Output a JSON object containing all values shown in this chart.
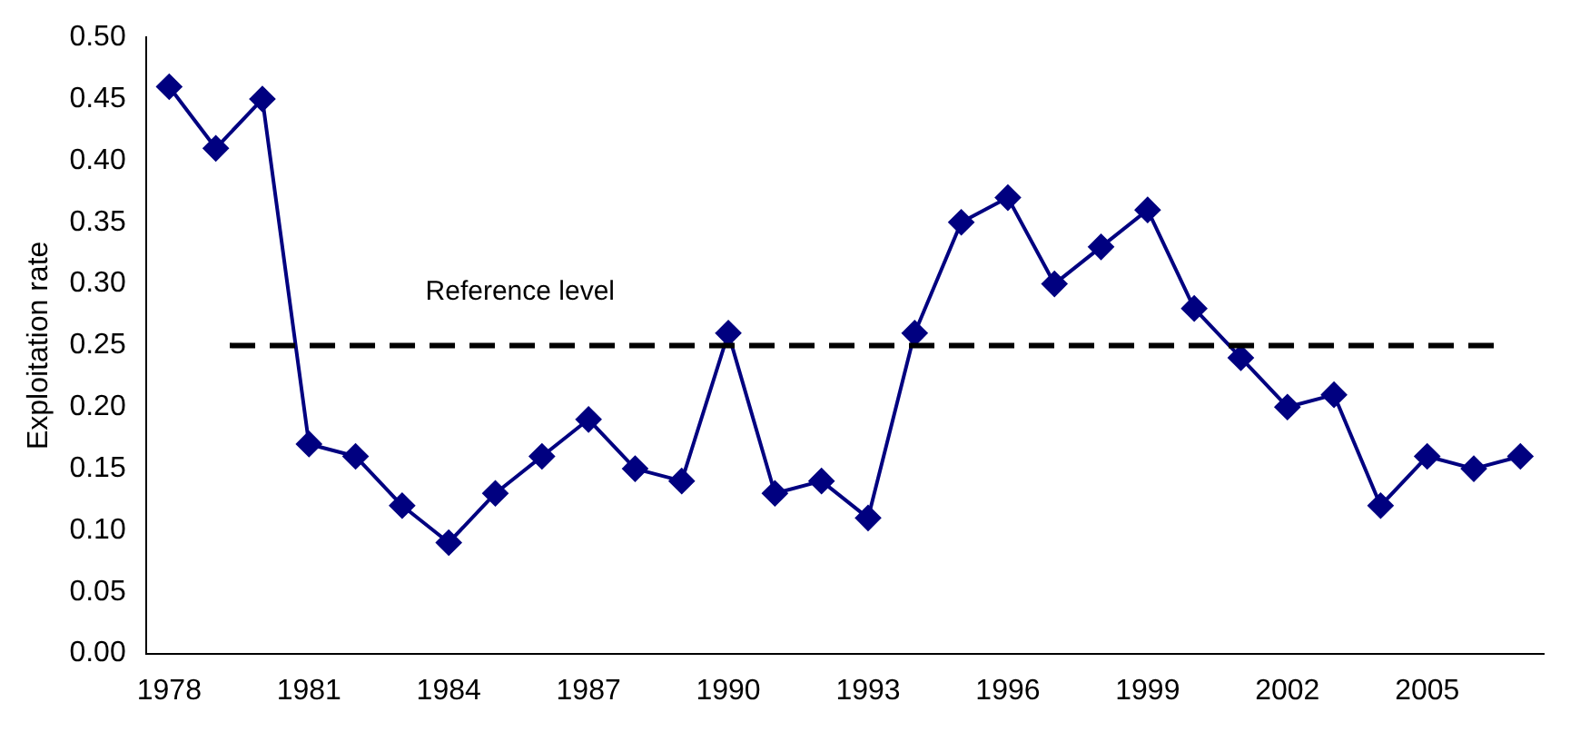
{
  "chart_data": {
    "type": "line",
    "ylabel": "Exploitation rate",
    "x": [
      1978,
      1979,
      1980,
      1981,
      1982,
      1983,
      1984,
      1985,
      1986,
      1987,
      1988,
      1989,
      1990,
      1991,
      1992,
      1993,
      1994,
      1995,
      1996,
      1997,
      1998,
      1999,
      2000,
      2001,
      2002,
      2003,
      2004,
      2005,
      2006,
      2007
    ],
    "series": [
      {
        "color": "#000080",
        "values": [
          0.46,
          0.41,
          0.45,
          0.17,
          0.16,
          0.12,
          0.09,
          0.13,
          0.16,
          0.19,
          0.15,
          0.14,
          0.26,
          0.13,
          0.14,
          0.11,
          0.26,
          0.35,
          0.37,
          0.3,
          0.33,
          0.36,
          0.28,
          0.24,
          0.2,
          0.21,
          0.12,
          0.16,
          0.15,
          0.16
        ]
      }
    ],
    "xlim": [
      1977.5,
      2007.5
    ],
    "xticks": [
      1978,
      1981,
      1984,
      1987,
      1990,
      1993,
      1996,
      1999,
      2002,
      2005
    ],
    "ylim": [
      0,
      0.5
    ],
    "yticks": [
      {
        "value": 0,
        "label": "0.00"
      },
      {
        "value": 0.05,
        "label": "0.05"
      },
      {
        "value": 0.1,
        "label": "0.10"
      },
      {
        "value": 0.15,
        "label": "0.15"
      },
      {
        "value": 0.2,
        "label": "0.20"
      },
      {
        "value": 0.25,
        "label": "0.25"
      },
      {
        "value": 0.3,
        "label": "0.30"
      },
      {
        "value": 0.35,
        "label": "0.35"
      },
      {
        "value": 0.4,
        "label": "0.40"
      },
      {
        "value": 0.45,
        "label": "0.45"
      },
      {
        "value": 0.5,
        "label": "0.50"
      }
    ],
    "ref_lines": [
      {
        "axis": "y",
        "value": 0.25,
        "label": "Reference level",
        "color": "#000000",
        "line_style": "dashed"
      }
    ],
    "marker": "diamond",
    "line_style": "solid",
    "grid": false,
    "legend": false
  }
}
